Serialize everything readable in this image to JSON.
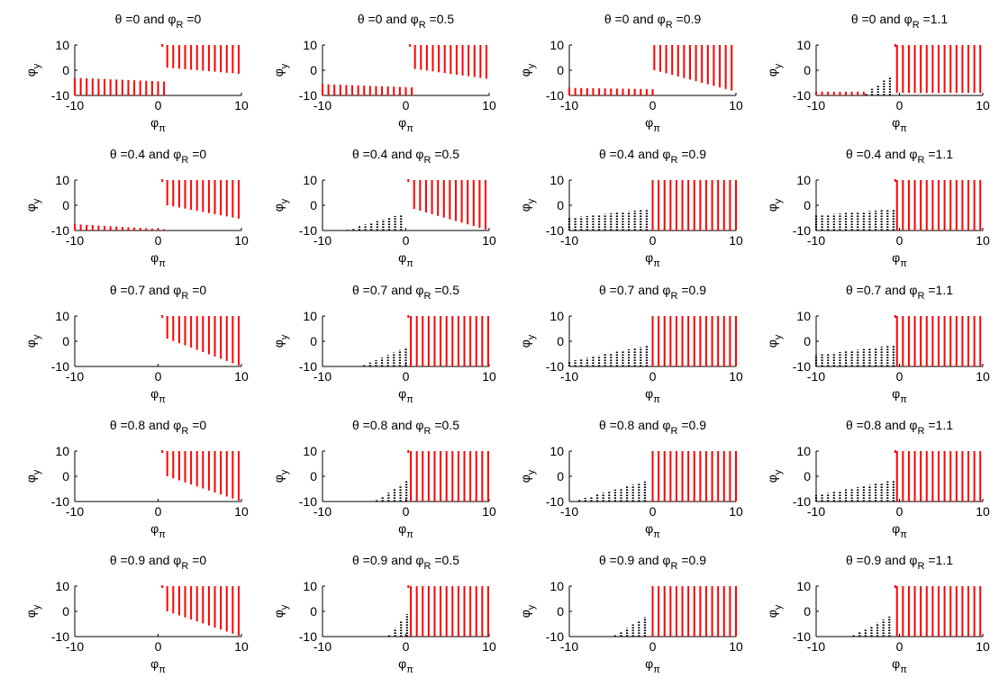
{
  "figure": {
    "axis_text": {
      "x_sym": "φ",
      "x_sub": "π",
      "y_sym": "φ",
      "y_sub": "y"
    },
    "colors": {
      "red": "#ff0000",
      "black": "#000000",
      "axes": "#000000"
    }
  },
  "chart_data": [
    {
      "type": "scatter",
      "title_theta": "0",
      "title_phiR": "0",
      "xlim": [
        -10,
        10
      ],
      "ylim": [
        -10,
        10
      ],
      "xticks": [
        "-10",
        "0",
        "10"
      ],
      "yticks": [
        "10",
        "0",
        "-10"
      ],
      "black_region": null,
      "red_left": {
        "x_end": 0.8,
        "top_start": -3,
        "top_end": -4.5
      },
      "red_right": {
        "x_start": 1.1,
        "top": 10,
        "bottom_start": 1,
        "bottom_end": -1.5
      },
      "small_top": {
        "x": 0.5,
        "y": 10
      }
    },
    {
      "type": "scatter",
      "title_theta": "0",
      "title_phiR": "0.5",
      "xlim": [
        -10,
        10
      ],
      "ylim": [
        -10,
        10
      ],
      "xticks": [
        "-10",
        "0",
        "10"
      ],
      "yticks": [
        "10",
        "0",
        "-10"
      ],
      "black_region": null,
      "red_left": {
        "x_end": 0.8,
        "top_start": -5.5,
        "top_end": -6.8
      },
      "red_right": {
        "x_start": 1.1,
        "top": 10,
        "bottom_start": 0.5,
        "bottom_end": -3.5
      },
      "small_top": {
        "x": 0.5,
        "y": 10
      }
    },
    {
      "type": "scatter",
      "title_theta": "0",
      "title_phiR": "0.9",
      "xlim": [
        -10,
        10
      ],
      "ylim": [
        -10,
        10
      ],
      "xticks": [
        "-10",
        "0",
        "10"
      ],
      "yticks": [
        "10",
        "0",
        "-10"
      ],
      "black_region": null,
      "red_left": {
        "x_end": 0.2,
        "top_start": -7,
        "top_end": -7.5
      },
      "red_right": {
        "x_start": 0.2,
        "top": 10,
        "bottom_start": 0,
        "bottom_end": -8.5
      },
      "small_top": null
    },
    {
      "type": "scatter",
      "title_theta": "0",
      "title_phiR": "1.1",
      "xlim": [
        -10,
        10
      ],
      "ylim": [
        -10,
        10
      ],
      "xticks": [
        "-10",
        "0",
        "10"
      ],
      "yticks": [
        "10",
        "0",
        "-10"
      ],
      "black_region": {
        "x_start": -4,
        "x_end": -0.5,
        "y_start": -9,
        "y_end": -1
      },
      "red_left": {
        "x_end": -4,
        "top_start": -8.5,
        "top_end": -8.5
      },
      "red_right": {
        "x_start": -0.3,
        "top": 10,
        "bottom_start": -9,
        "bottom_end": -9
      },
      "small_top": {
        "x": -0.5,
        "y": 10
      }
    },
    {
      "type": "scatter",
      "title_theta": "0.4",
      "title_phiR": "0",
      "xlim": [
        -10,
        10
      ],
      "ylim": [
        -10,
        10
      ],
      "xticks": [
        "-10",
        "0",
        "10"
      ],
      "yticks": [
        "10",
        "0",
        "-10"
      ],
      "black_region": null,
      "red_left": {
        "x_end": 0.8,
        "top_start": -7.5,
        "top_end": -9.5
      },
      "red_right": {
        "x_start": 1.1,
        "top": 10,
        "bottom_start": 0,
        "bottom_end": -5.5
      },
      "small_top": {
        "x": 0.5,
        "y": 10
      }
    },
    {
      "type": "scatter",
      "title_theta": "0.4",
      "title_phiR": "0.5",
      "xlim": [
        -10,
        10
      ],
      "ylim": [
        -10,
        10
      ],
      "xticks": [
        "-10",
        "0",
        "10"
      ],
      "yticks": [
        "10",
        "0",
        "-10"
      ],
      "black_region": {
        "x_start": -7,
        "x_end": 0,
        "y_start": -9.7,
        "y_end": -3
      },
      "red_left": null,
      "red_right": {
        "x_start": 1.0,
        "top": 10,
        "bottom_start": -1.5,
        "bottom_end": -10
      },
      "small_top": {
        "x": 0.3,
        "y": 10
      }
    },
    {
      "type": "scatter",
      "title_theta": "0.4",
      "title_phiR": "0.9",
      "xlim": [
        -10,
        10
      ],
      "ylim": [
        -10,
        10
      ],
      "xticks": [
        "-10",
        "0",
        "10"
      ],
      "yticks": [
        "10",
        "0",
        "-10"
      ],
      "black_region": {
        "x_start": -10,
        "x_end": -0.3,
        "y_start": -5,
        "y_end": -1.5
      },
      "red_left": null,
      "red_right": {
        "x_start": 0,
        "top": 10,
        "bottom_start": -10,
        "bottom_end": -10
      },
      "small_top": null
    },
    {
      "type": "scatter",
      "title_theta": "0.4",
      "title_phiR": "1.1",
      "xlim": [
        -10,
        10
      ],
      "ylim": [
        -10,
        10
      ],
      "xticks": [
        "-10",
        "0",
        "10"
      ],
      "yticks": [
        "10",
        "0",
        "-10"
      ],
      "black_region": {
        "x_start": -10,
        "x_end": -0.6,
        "y_start": -4,
        "y_end": -1.5
      },
      "red_left": null,
      "red_right": {
        "x_start": -0.3,
        "top": 10,
        "bottom_start": -10,
        "bottom_end": -10
      },
      "small_top": {
        "x": -0.5,
        "y": 10
      }
    },
    {
      "type": "scatter",
      "title_theta": "0.7",
      "title_phiR": "0",
      "xlim": [
        -10,
        10
      ],
      "ylim": [
        -10,
        10
      ],
      "xticks": [
        "-10",
        "0",
        "10"
      ],
      "yticks": [
        "10",
        "0",
        "-10"
      ],
      "black_region": null,
      "red_left": null,
      "red_right": {
        "x_start": 1.1,
        "top": 10,
        "bottom_start": 1,
        "bottom_end": -10
      },
      "small_top": {
        "x": 0.5,
        "y": 10
      }
    },
    {
      "type": "scatter",
      "title_theta": "0.7",
      "title_phiR": "0.5",
      "xlim": [
        -10,
        10
      ],
      "ylim": [
        -10,
        10
      ],
      "xticks": [
        "-10",
        "0",
        "10"
      ],
      "yticks": [
        "10",
        "0",
        "-10"
      ],
      "black_region": {
        "x_start": -5,
        "x_end": 0.3,
        "y_start": -9.5,
        "y_end": -2
      },
      "red_left": null,
      "red_right": {
        "x_start": 0.6,
        "top": 10,
        "bottom_start": -10,
        "bottom_end": -10
      },
      "small_top": {
        "x": 0.3,
        "y": 10
      }
    },
    {
      "type": "scatter",
      "title_theta": "0.7",
      "title_phiR": "0.9",
      "xlim": [
        -10,
        10
      ],
      "ylim": [
        -10,
        10
      ],
      "xticks": [
        "-10",
        "0",
        "10"
      ],
      "yticks": [
        "10",
        "0",
        "-10"
      ],
      "black_region": {
        "x_start": -10,
        "x_end": -0.3,
        "y_start": -8,
        "y_end": -1.5
      },
      "red_left": null,
      "red_right": {
        "x_start": 0,
        "top": 10,
        "bottom_start": -10,
        "bottom_end": -10
      },
      "small_top": null
    },
    {
      "type": "scatter",
      "title_theta": "0.7",
      "title_phiR": "1.1",
      "xlim": [
        -10,
        10
      ],
      "ylim": [
        -10,
        10
      ],
      "xticks": [
        "-10",
        "0",
        "10"
      ],
      "yticks": [
        "10",
        "0",
        "-10"
      ],
      "black_region": {
        "x_start": -10,
        "x_end": -0.6,
        "y_start": -5.5,
        "y_end": -1.5
      },
      "red_left": null,
      "red_right": {
        "x_start": -0.3,
        "top": 10,
        "bottom_start": -10,
        "bottom_end": -10
      },
      "small_top": {
        "x": -0.5,
        "y": 10
      }
    },
    {
      "type": "scatter",
      "title_theta": "0.8",
      "title_phiR": "0",
      "xlim": [
        -10,
        10
      ],
      "ylim": [
        -10,
        10
      ],
      "xticks": [
        "-10",
        "0",
        "10"
      ],
      "yticks": [
        "10",
        "0",
        "-10"
      ],
      "black_region": null,
      "red_left": null,
      "red_right": {
        "x_start": 1.1,
        "top": 10,
        "bottom_start": 0,
        "bottom_end": -10
      },
      "small_top": {
        "x": 0.5,
        "y": 10
      }
    },
    {
      "type": "scatter",
      "title_theta": "0.8",
      "title_phiR": "0.5",
      "xlim": [
        -10,
        10
      ],
      "ylim": [
        -10,
        10
      ],
      "xticks": [
        "-10",
        "0",
        "10"
      ],
      "yticks": [
        "10",
        "0",
        "-10"
      ],
      "black_region": {
        "x_start": -3.5,
        "x_end": 0.3,
        "y_start": -9.5,
        "y_end": -1.5
      },
      "red_left": null,
      "red_right": {
        "x_start": 0.6,
        "top": 10,
        "bottom_start": -10,
        "bottom_end": -10
      },
      "small_top": {
        "x": 0.3,
        "y": 10
      }
    },
    {
      "type": "scatter",
      "title_theta": "0.8",
      "title_phiR": "0.9",
      "xlim": [
        -10,
        10
      ],
      "ylim": [
        -10,
        10
      ],
      "xticks": [
        "-10",
        "0",
        "10"
      ],
      "yticks": [
        "10",
        "0",
        "-10"
      ],
      "black_region": {
        "x_start": -9.5,
        "x_end": -0.3,
        "y_start": -9.8,
        "y_end": -1.5
      },
      "red_left": null,
      "red_right": {
        "x_start": 0,
        "top": 10,
        "bottom_start": -10,
        "bottom_end": -10
      },
      "small_top": null
    },
    {
      "type": "scatter",
      "title_theta": "0.8",
      "title_phiR": "1.1",
      "xlim": [
        -10,
        10
      ],
      "ylim": [
        -10,
        10
      ],
      "xticks": [
        "-10",
        "0",
        "10"
      ],
      "yticks": [
        "10",
        "0",
        "-10"
      ],
      "black_region": {
        "x_start": -10,
        "x_end": -0.6,
        "y_start": -7.5,
        "y_end": -1.5
      },
      "red_left": null,
      "red_right": {
        "x_start": -0.3,
        "top": 10,
        "bottom_start": -10,
        "bottom_end": -10
      },
      "small_top": {
        "x": -0.5,
        "y": 10
      }
    },
    {
      "type": "scatter",
      "title_theta": "0.9",
      "title_phiR": "0",
      "xlim": [
        -10,
        10
      ],
      "ylim": [
        -10,
        10
      ],
      "xticks": [
        "-10",
        "0",
        "10"
      ],
      "yticks": [
        "10",
        "0",
        "-10"
      ],
      "black_region": null,
      "red_left": null,
      "red_right": {
        "x_start": 1.1,
        "top": 10,
        "bottom_start": 0,
        "bottom_end": -10
      },
      "small_top": {
        "x": 0.5,
        "y": 10
      }
    },
    {
      "type": "scatter",
      "title_theta": "0.9",
      "title_phiR": "0.5",
      "xlim": [
        -10,
        10
      ],
      "ylim": [
        -10,
        10
      ],
      "xticks": [
        "-10",
        "0",
        "10"
      ],
      "yticks": [
        "10",
        "0",
        "-10"
      ],
      "black_region": {
        "x_start": -2,
        "x_end": 0.3,
        "y_start": -9.5,
        "y_end": -0.5
      },
      "red_left": null,
      "red_right": {
        "x_start": 0.6,
        "top": 10,
        "bottom_start": -10,
        "bottom_end": -10
      },
      "small_top": {
        "x": 0.3,
        "y": 10
      }
    },
    {
      "type": "scatter",
      "title_theta": "0.9",
      "title_phiR": "0.9",
      "xlim": [
        -10,
        10
      ],
      "ylim": [
        -10,
        10
      ],
      "xticks": [
        "-10",
        "0",
        "10"
      ],
      "yticks": [
        "10",
        "0",
        "-10"
      ],
      "black_region": {
        "x_start": -4.5,
        "x_end": -0.3,
        "y_start": -9.5,
        "y_end": -1
      },
      "red_left": null,
      "red_right": {
        "x_start": 0,
        "top": 10,
        "bottom_start": -10,
        "bottom_end": -10
      },
      "small_top": null
    },
    {
      "type": "scatter",
      "title_theta": "0.9",
      "title_phiR": "1.1",
      "xlim": [
        -10,
        10
      ],
      "ylim": [
        -10,
        10
      ],
      "xticks": [
        "-10",
        "0",
        "10"
      ],
      "yticks": [
        "10",
        "0",
        "-10"
      ],
      "black_region": {
        "x_start": -5.5,
        "x_end": -0.6,
        "y_start": -9.5,
        "y_end": -1
      },
      "red_left": null,
      "red_right": {
        "x_start": -0.3,
        "top": 10,
        "bottom_start": -10,
        "bottom_end": -10
      },
      "small_top": {
        "x": -0.5,
        "y": 10
      }
    }
  ]
}
